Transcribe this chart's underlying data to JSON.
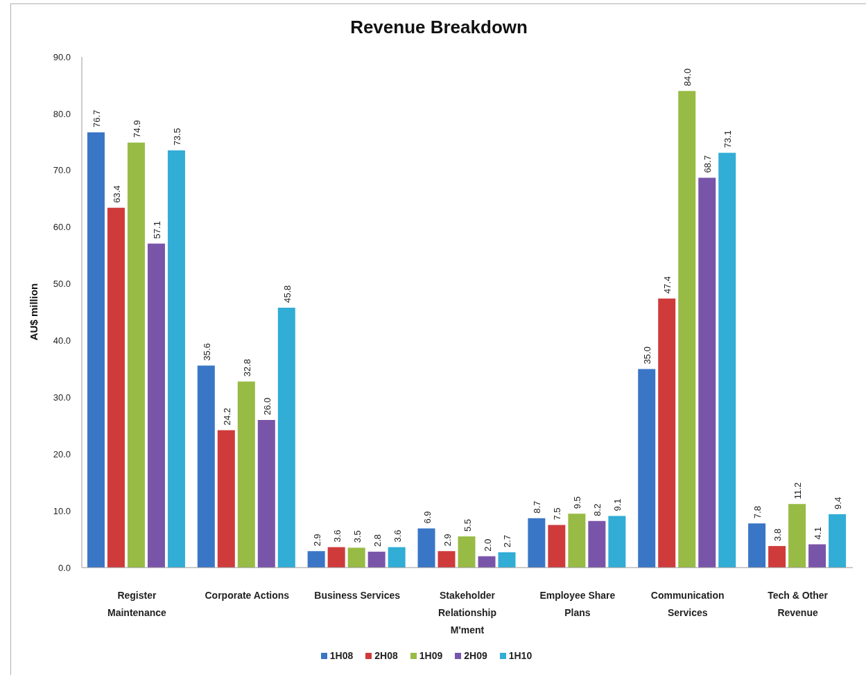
{
  "chart_data": {
    "type": "bar",
    "title": "Revenue Breakdown",
    "ylabel": "AU$ million",
    "categories": [
      "Register Maintenance",
      "Corporate Actions",
      "Business Services",
      "Stakeholder Relationship M'ment",
      "Employee Share Plans",
      "Communication Services",
      "Tech & Other Revenue"
    ],
    "series": [
      {
        "name": "1H08",
        "color": "#3a76c6",
        "values": [
          76.7,
          35.6,
          2.9,
          6.9,
          8.7,
          35.0,
          7.8
        ],
        "value_labels": [
          "76.7",
          "35.6",
          "2.9",
          "6.9",
          "8.7",
          "35.0",
          "7.8"
        ]
      },
      {
        "name": "2H08",
        "color": "#cf3b3b",
        "values": [
          63.4,
          24.2,
          3.6,
          2.9,
          7.5,
          47.4,
          3.8
        ],
        "value_labels": [
          "63.4",
          "24.2",
          "3.6",
          "2.9",
          "7.5",
          "47.4",
          "3.8"
        ]
      },
      {
        "name": "1H09",
        "color": "#98bb45",
        "values": [
          74.9,
          32.8,
          3.5,
          5.5,
          9.5,
          84.0,
          11.2
        ],
        "value_labels": [
          "74.9",
          "32.8",
          "3.5",
          "5.5",
          "9.5",
          "84.0",
          "11.2"
        ]
      },
      {
        "name": "2H09",
        "color": "#7955a9",
        "values": [
          57.1,
          26.0,
          2.8,
          2.0,
          8.2,
          68.7,
          4.1
        ],
        "value_labels": [
          "57.1",
          "26.0",
          "2.8",
          "2.0",
          "8.2",
          "68.7",
          "4.1"
        ]
      },
      {
        "name": "1H10",
        "color": "#31add6",
        "values": [
          73.5,
          45.8,
          3.6,
          2.7,
          9.1,
          73.1,
          9.4
        ],
        "value_labels": [
          "73.5",
          "45.8",
          "3.6",
          "2.7",
          "9.1",
          "73.1",
          "9.4"
        ]
      }
    ],
    "ylim": [
      0,
      90
    ],
    "yticks": [
      {
        "value": 0,
        "label": "0.0"
      },
      {
        "value": 10,
        "label": "10.0"
      },
      {
        "value": 20,
        "label": "20.0"
      },
      {
        "value": 30,
        "label": "30.0"
      },
      {
        "value": 40,
        "label": "40.0"
      },
      {
        "value": 50,
        "label": "50.0"
      },
      {
        "value": 60,
        "label": "60.0"
      },
      {
        "value": 70,
        "label": "70.0"
      },
      {
        "value": 80,
        "label": "80.0"
      },
      {
        "value": 90,
        "label": "90.0"
      }
    ],
    "legend": "bottom"
  }
}
